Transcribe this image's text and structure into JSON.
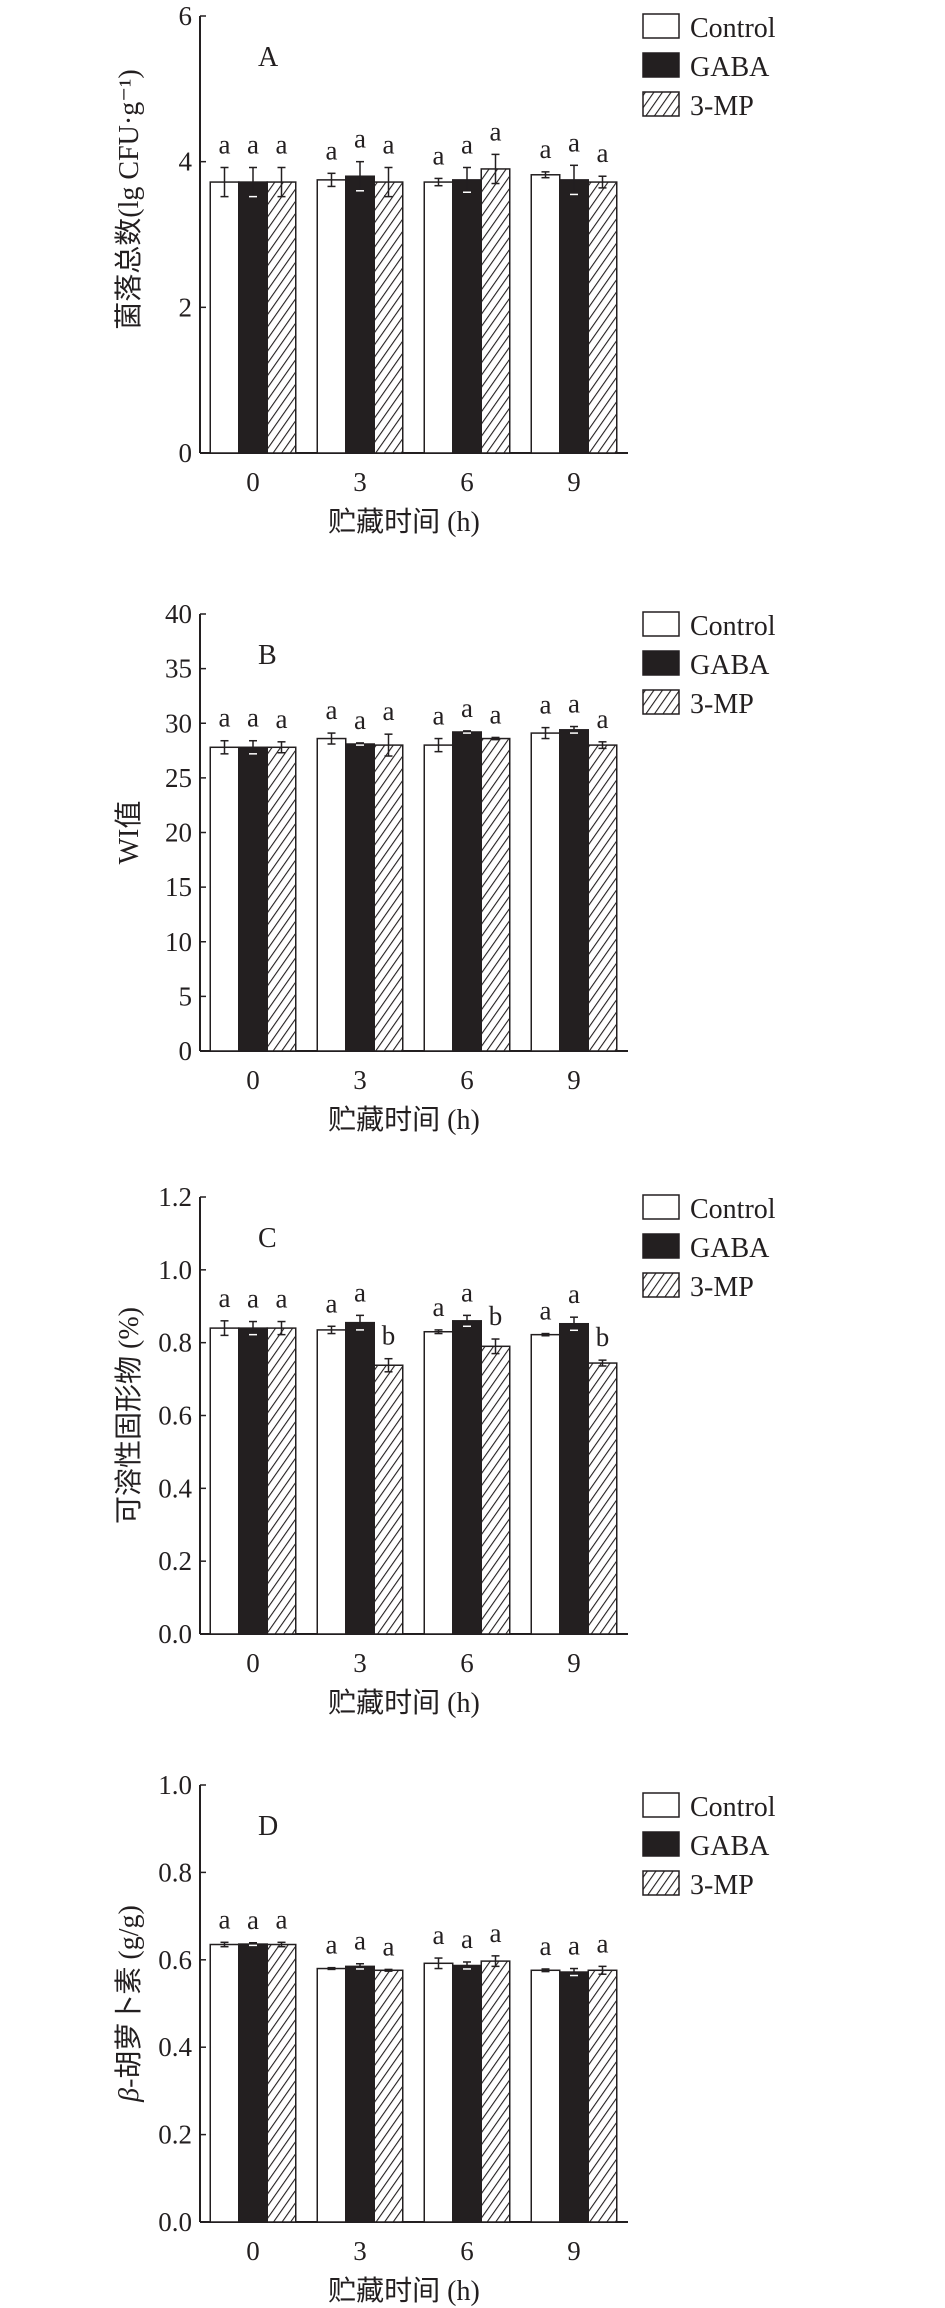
{
  "colors": {
    "axis": "#231f20",
    "gaba": "#231f20",
    "control": "#ffffff"
  },
  "chart_data": [
    {
      "type": "bar",
      "panel": "A",
      "categories": [
        "0",
        "3",
        "6",
        "9"
      ],
      "xlabel": "贮藏时间 (h)",
      "ylabel": "菌落总数(lg CFU·g⁻¹)",
      "ylim": [
        0,
        6
      ],
      "yticks": [
        "0",
        "2",
        "4",
        "6"
      ],
      "ytick_values": [
        0,
        2,
        4,
        6
      ],
      "legend": [
        "Control",
        "GABA",
        "3-MP"
      ],
      "legend_position": "top-right",
      "series": [
        {
          "name": "Control",
          "values": [
            3.72,
            3.75,
            3.72,
            3.82
          ],
          "errors": [
            0.2,
            0.09,
            0.05,
            0.04
          ],
          "letters": [
            "a",
            "a",
            "a",
            "a"
          ]
        },
        {
          "name": "GABA",
          "values": [
            3.72,
            3.8,
            3.75,
            3.75
          ],
          "errors": [
            0.2,
            0.2,
            0.17,
            0.2
          ],
          "letters": [
            "a",
            "a",
            "a",
            "a"
          ]
        },
        {
          "name": "3-MP",
          "values": [
            3.72,
            3.72,
            3.9,
            3.72
          ],
          "errors": [
            0.2,
            0.2,
            0.2,
            0.08
          ],
          "letters": [
            "a",
            "a",
            "a",
            "a"
          ]
        }
      ]
    },
    {
      "type": "bar",
      "panel": "B",
      "categories": [
        "0",
        "3",
        "6",
        "9"
      ],
      "xlabel": "贮藏时间 (h)",
      "ylabel": "WI值",
      "ylim": [
        0,
        40
      ],
      "yticks": [
        "0",
        "5",
        "10",
        "15",
        "20",
        "25",
        "30",
        "35",
        "40"
      ],
      "ytick_values": [
        0,
        5,
        10,
        15,
        20,
        25,
        30,
        35,
        40
      ],
      "legend": [
        "Control",
        "GABA",
        "3-MP"
      ],
      "legend_position": "top-right",
      "series": [
        {
          "name": "Control",
          "values": [
            27.8,
            28.6,
            28.0,
            29.1
          ],
          "errors": [
            0.6,
            0.5,
            0.6,
            0.5
          ],
          "letters": [
            "a",
            "a",
            "a",
            "a"
          ]
        },
        {
          "name": "GABA",
          "values": [
            27.8,
            28.1,
            29.2,
            29.4
          ],
          "errors": [
            0.6,
            0.1,
            0.1,
            0.3
          ],
          "letters": [
            "a",
            "a",
            "a",
            "a"
          ]
        },
        {
          "name": "3-MP",
          "values": [
            27.8,
            28.0,
            28.6,
            28.0
          ],
          "errors": [
            0.5,
            1.0,
            0.1,
            0.3
          ],
          "letters": [
            "a",
            "a",
            "a",
            "a"
          ]
        }
      ]
    },
    {
      "type": "bar",
      "panel": "C",
      "categories": [
        "0",
        "3",
        "6",
        "9"
      ],
      "xlabel": "贮藏时间 (h)",
      "ylabel": "可溶性固形物 (%)",
      "ylim": [
        0,
        1.2
      ],
      "yticks": [
        "0.0",
        "0.2",
        "0.4",
        "0.6",
        "0.8",
        "1.0",
        "1.2"
      ],
      "ytick_values": [
        0,
        0.2,
        0.4,
        0.6,
        0.8,
        1.0,
        1.2
      ],
      "legend": [
        "Control",
        "GABA",
        "3-MP"
      ],
      "legend_position": "top-right",
      "series": [
        {
          "name": "Control",
          "values": [
            0.84,
            0.835,
            0.83,
            0.822
          ],
          "errors": [
            0.02,
            0.01,
            0.005,
            0.003
          ],
          "letters": [
            "a",
            "a",
            "a",
            "a"
          ]
        },
        {
          "name": "GABA",
          "values": [
            0.84,
            0.855,
            0.86,
            0.852
          ],
          "errors": [
            0.018,
            0.02,
            0.015,
            0.018
          ],
          "letters": [
            "a",
            "a",
            "a",
            "a"
          ]
        },
        {
          "name": "3-MP",
          "values": [
            0.84,
            0.738,
            0.79,
            0.744
          ],
          "errors": [
            0.018,
            0.018,
            0.02,
            0.008
          ],
          "letters": [
            "a",
            "b",
            "b",
            "b"
          ]
        }
      ]
    },
    {
      "type": "bar",
      "panel": "D",
      "categories": [
        "0",
        "3",
        "6",
        "9"
      ],
      "xlabel": "贮藏时间 (h)",
      "ylabel_prefix": "β",
      "ylabel": "-胡萝卜素 (g/g)",
      "ylim": [
        0,
        1.0
      ],
      "yticks": [
        "0.0",
        "0.2",
        "0.4",
        "0.6",
        "0.8",
        "1.0"
      ],
      "ytick_values": [
        0,
        0.2,
        0.4,
        0.6,
        0.8,
        1.0
      ],
      "legend": [
        "Control",
        "GABA",
        "3-MP"
      ],
      "legend_position": "top-right",
      "series": [
        {
          "name": "Control",
          "values": [
            0.635,
            0.58,
            0.592,
            0.576
          ],
          "errors": [
            0.005,
            0.002,
            0.012,
            0.003
          ],
          "letters": [
            "a",
            "a",
            "a",
            "a"
          ]
        },
        {
          "name": "GABA",
          "values": [
            0.636,
            0.585,
            0.587,
            0.572
          ],
          "errors": [
            0.003,
            0.006,
            0.008,
            0.008
          ],
          "letters": [
            "a",
            "a",
            "a",
            "a"
          ]
        },
        {
          "name": "3-MP",
          "values": [
            0.635,
            0.576,
            0.597,
            0.576
          ],
          "errors": [
            0.005,
            0.002,
            0.012,
            0.009
          ],
          "letters": [
            "a",
            "a",
            "a",
            "a"
          ]
        }
      ]
    }
  ]
}
